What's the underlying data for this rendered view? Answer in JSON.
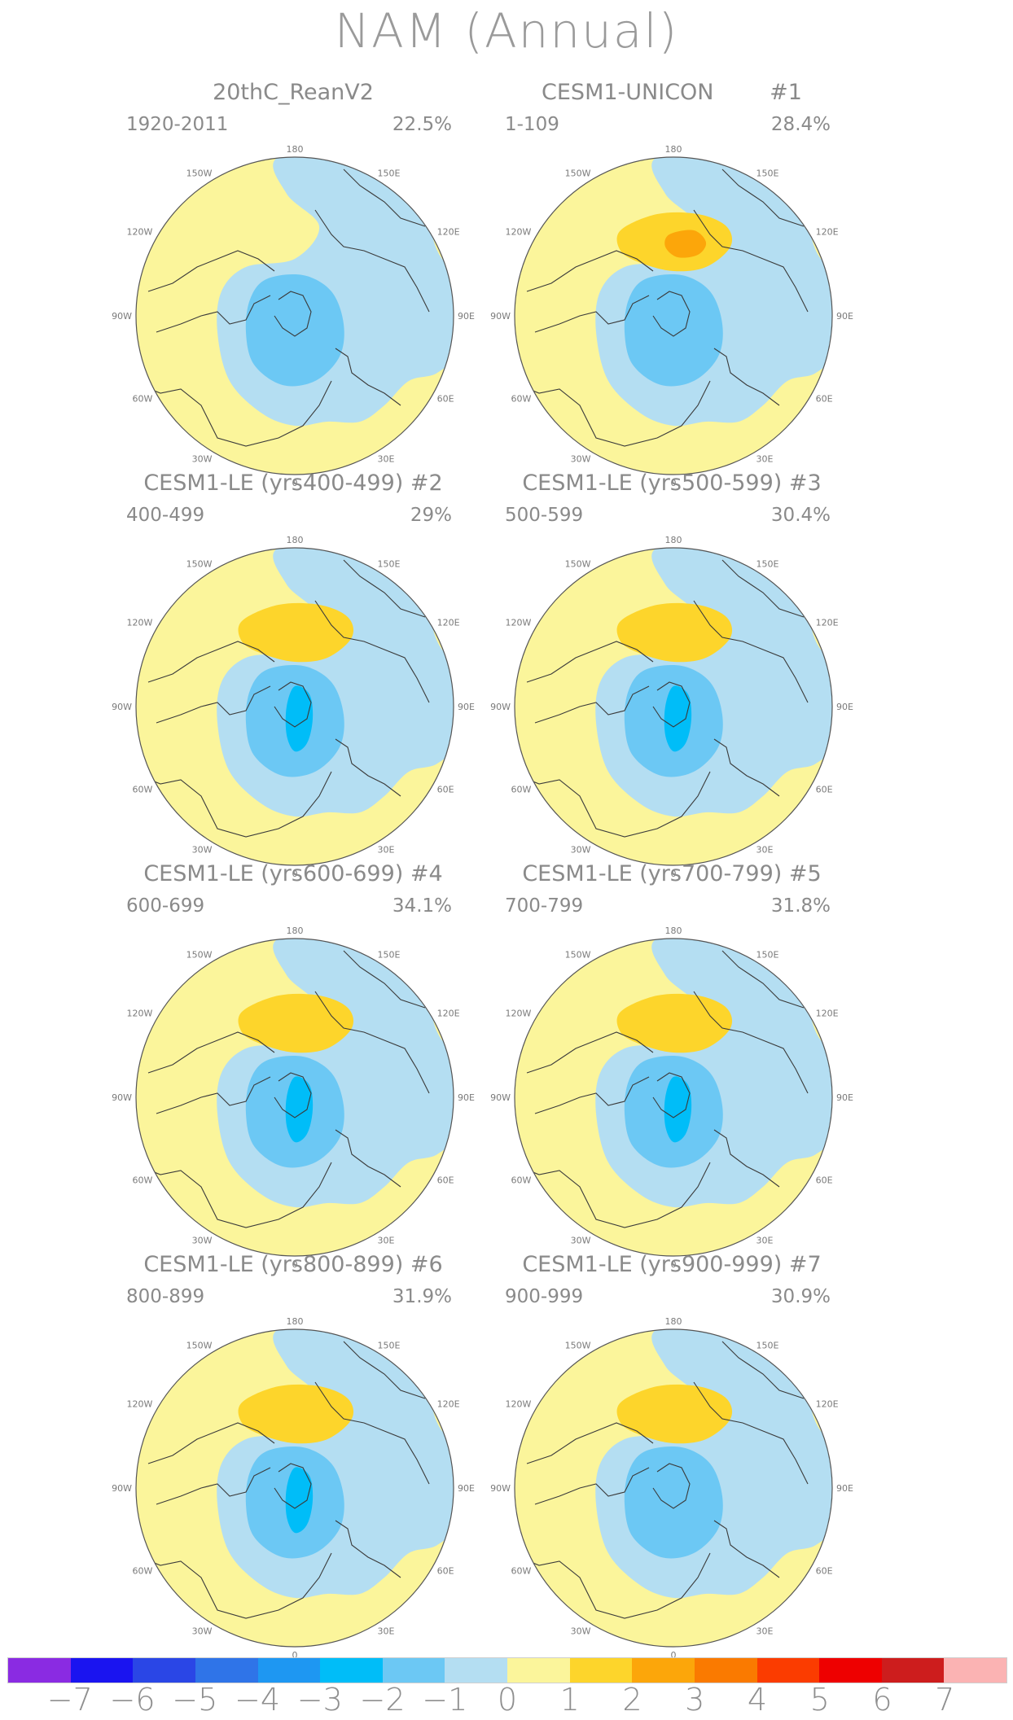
{
  "title": "NAM (Annual)",
  "lon_labels": {
    "n": "180",
    "s": "0",
    "e": "90E",
    "w": "90W",
    "ne1": "150E",
    "ne2": "120E",
    "se1": "60E",
    "se2": "30E",
    "nw1": "150W",
    "nw2": "120W",
    "sw1": "60W",
    "sw2": "30W"
  },
  "panels": [
    {
      "title": "20thC_ReanV2",
      "number": "",
      "period": "1920-2011",
      "percent": "22.5%",
      "positive_lobe": false,
      "neg_max": -2
    },
    {
      "title": "CESM1-UNICON",
      "number": "#1",
      "period": "1-109",
      "percent": "28.4%",
      "positive_lobe": true,
      "pos_max": 2,
      "neg_max": -2
    },
    {
      "title": "CESM1-LE (yrs400-499)",
      "number": "#2",
      "period": "400-499",
      "percent": "29%",
      "positive_lobe": true,
      "pos_max": 1,
      "neg_max": -3
    },
    {
      "title": "CESM1-LE (yrs500-599)",
      "number": "#3",
      "period": "500-599",
      "percent": "30.4%",
      "positive_lobe": true,
      "pos_max": 1,
      "neg_max": -3
    },
    {
      "title": "CESM1-LE (yrs600-699)",
      "number": "#4",
      "period": "600-699",
      "percent": "34.1%",
      "positive_lobe": true,
      "pos_max": 1,
      "neg_max": -3
    },
    {
      "title": "CESM1-LE (yrs700-799)",
      "number": "#5",
      "period": "700-799",
      "percent": "31.8%",
      "positive_lobe": true,
      "pos_max": 1,
      "neg_max": -3
    },
    {
      "title": "CESM1-LE (yrs800-899)",
      "number": "#6",
      "period": "800-899",
      "percent": "31.9%",
      "positive_lobe": true,
      "pos_max": 1,
      "neg_max": -3
    },
    {
      "title": "CESM1-LE (yrs900-999)",
      "number": "#7",
      "period": "900-999",
      "percent": "30.9%",
      "positive_lobe": true,
      "pos_max": 1,
      "neg_max": -2
    }
  ],
  "colorbar": {
    "colors": [
      "#8a2be2",
      "#1a14f0",
      "#2a46e6",
      "#2f74e8",
      "#1e97f2",
      "#00bdf8",
      "#6cc8f4",
      "#b4def2",
      "#fbf59b",
      "#fdd52b",
      "#fca60a",
      "#fa7a00",
      "#fb3c00",
      "#ee0000",
      "#cd1d1d",
      "#fbb3b3"
    ],
    "labels": [
      "−7",
      "−6",
      "−5",
      "−4",
      "−3",
      "−2",
      "−1",
      "0",
      "1",
      "2",
      "3",
      "4",
      "5",
      "6",
      "7"
    ]
  },
  "level_colors": {
    "neg1": "#b4def2",
    "neg2": "#6cc8f4",
    "neg3": "#00bdf8",
    "pos0": "#fbf59b",
    "pos1": "#fdd52b",
    "pos2": "#fca60a"
  }
}
